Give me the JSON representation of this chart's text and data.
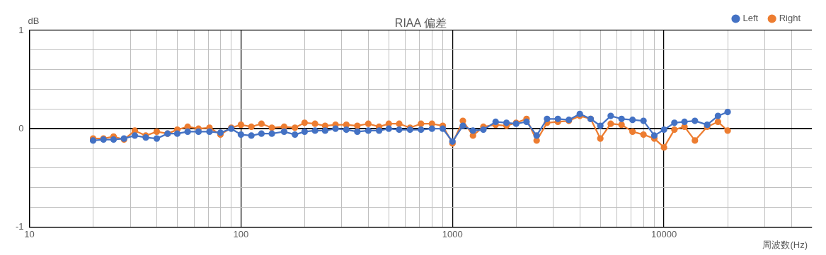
{
  "chart_data": {
    "type": "line",
    "title": "RIAA 偏差",
    "xlabel": "周波数(Hz)",
    "ylabel": "dB",
    "log": "x",
    "grid": true,
    "legend": "top right",
    "marker": "circle",
    "line_style": "solid",
    "xlim": [
      10,
      50000
    ],
    "xticks": [
      10,
      {
        "value": 20,
        "label": null
      },
      {
        "value": 30,
        "label": null
      },
      {
        "value": 40,
        "label": null
      },
      {
        "value": 50,
        "label": null
      },
      {
        "value": 60,
        "label": null
      },
      {
        "value": 70,
        "label": null
      },
      {
        "value": 80,
        "label": null
      },
      {
        "value": 90,
        "label": null
      },
      100,
      {
        "value": 200,
        "label": null
      },
      {
        "value": 300,
        "label": null
      },
      {
        "value": 400,
        "label": null
      },
      {
        "value": 500,
        "label": null
      },
      {
        "value": 600,
        "label": null
      },
      {
        "value": 700,
        "label": null
      },
      {
        "value": 800,
        "label": null
      },
      {
        "value": 900,
        "label": null
      },
      1000,
      {
        "value": 2000,
        "label": null
      },
      {
        "value": 3000,
        "label": null
      },
      {
        "value": 4000,
        "label": null
      },
      {
        "value": 5000,
        "label": null
      },
      {
        "value": 6000,
        "label": null
      },
      {
        "value": 7000,
        "label": null
      },
      {
        "value": 8000,
        "label": null
      },
      {
        "value": 9000,
        "label": null
      },
      10000,
      {
        "value": 20000,
        "label": null
      },
      {
        "value": 30000,
        "label": null
      },
      {
        "value": 40000,
        "label": null
      }
    ],
    "ylim": [
      -1,
      1
    ],
    "yticks": [
      -1,
      {
        "value": -0.8,
        "label": null
      },
      {
        "value": -0.6,
        "label": null
      },
      {
        "value": -0.4,
        "label": null
      },
      {
        "value": -0.2,
        "label": null
      },
      0,
      {
        "value": 0.2,
        "label": null
      },
      {
        "value": 0.4,
        "label": null
      },
      {
        "value": 0.6,
        "label": null
      },
      {
        "value": 0.8,
        "label": null
      },
      1
    ],
    "x": [
      20,
      22.4,
      25,
      28,
      31.5,
      35.5,
      40,
      45,
      50,
      56,
      63,
      71,
      80,
      90,
      100,
      112,
      125,
      140,
      160,
      180,
      200,
      224,
      250,
      280,
      315,
      355,
      400,
      450,
      500,
      560,
      630,
      710,
      800,
      900,
      1000,
      1120,
      1250,
      1400,
      1600,
      1800,
      2000,
      2240,
      2500,
      2800,
      3150,
      3550,
      4000,
      4500,
      5000,
      5600,
      6300,
      7100,
      8000,
      9000,
      10000,
      11200,
      12500,
      14000,
      16000,
      18000,
      20000
    ],
    "series": [
      {
        "name": "Left",
        "color": "#4472c4",
        "values": [
          -0.12,
          -0.11,
          -0.11,
          -0.1,
          -0.07,
          -0.09,
          -0.1,
          -0.05,
          -0.05,
          -0.03,
          -0.03,
          -0.03,
          -0.04,
          0,
          -0.06,
          -0.07,
          -0.05,
          -0.05,
          -0.03,
          -0.06,
          -0.03,
          -0.02,
          -0.02,
          0,
          -0.01,
          -0.03,
          -0.02,
          -0.02,
          0,
          -0.01,
          -0.01,
          -0.01,
          0,
          0,
          -0.13,
          0.03,
          -0.02,
          -0.01,
          0.07,
          0.06,
          0.05,
          0.07,
          -0.07,
          0.1,
          0.1,
          0.09,
          0.15,
          0.1,
          0.03,
          0.13,
          0.1,
          0.09,
          0.08,
          -0.07,
          -0.01,
          0.06,
          0.07,
          0.08,
          0.04,
          0.13,
          0.17
        ]
      },
      {
        "name": "Right",
        "color": "#ed7d31",
        "values": [
          -0.1,
          -0.1,
          -0.08,
          -0.11,
          -0.02,
          -0.07,
          -0.03,
          -0.05,
          -0.01,
          0.02,
          0,
          0.01,
          -0.06,
          0.01,
          0.04,
          0.02,
          0.05,
          0.01,
          0.02,
          0.01,
          0.06,
          0.05,
          0.03,
          0.04,
          0.04,
          0.03,
          0.05,
          0.02,
          0.05,
          0.05,
          0.01,
          0.05,
          0.05,
          0.03,
          -0.15,
          0.08,
          -0.07,
          0.02,
          0.04,
          0.03,
          0.06,
          0.1,
          -0.12,
          0.06,
          0.07,
          0.08,
          0.13,
          0.1,
          -0.1,
          0.05,
          0.04,
          -0.03,
          -0.06,
          -0.1,
          -0.19,
          -0.01,
          0.02,
          -0.12,
          0.02,
          0.07,
          -0.02
        ]
      }
    ]
  }
}
